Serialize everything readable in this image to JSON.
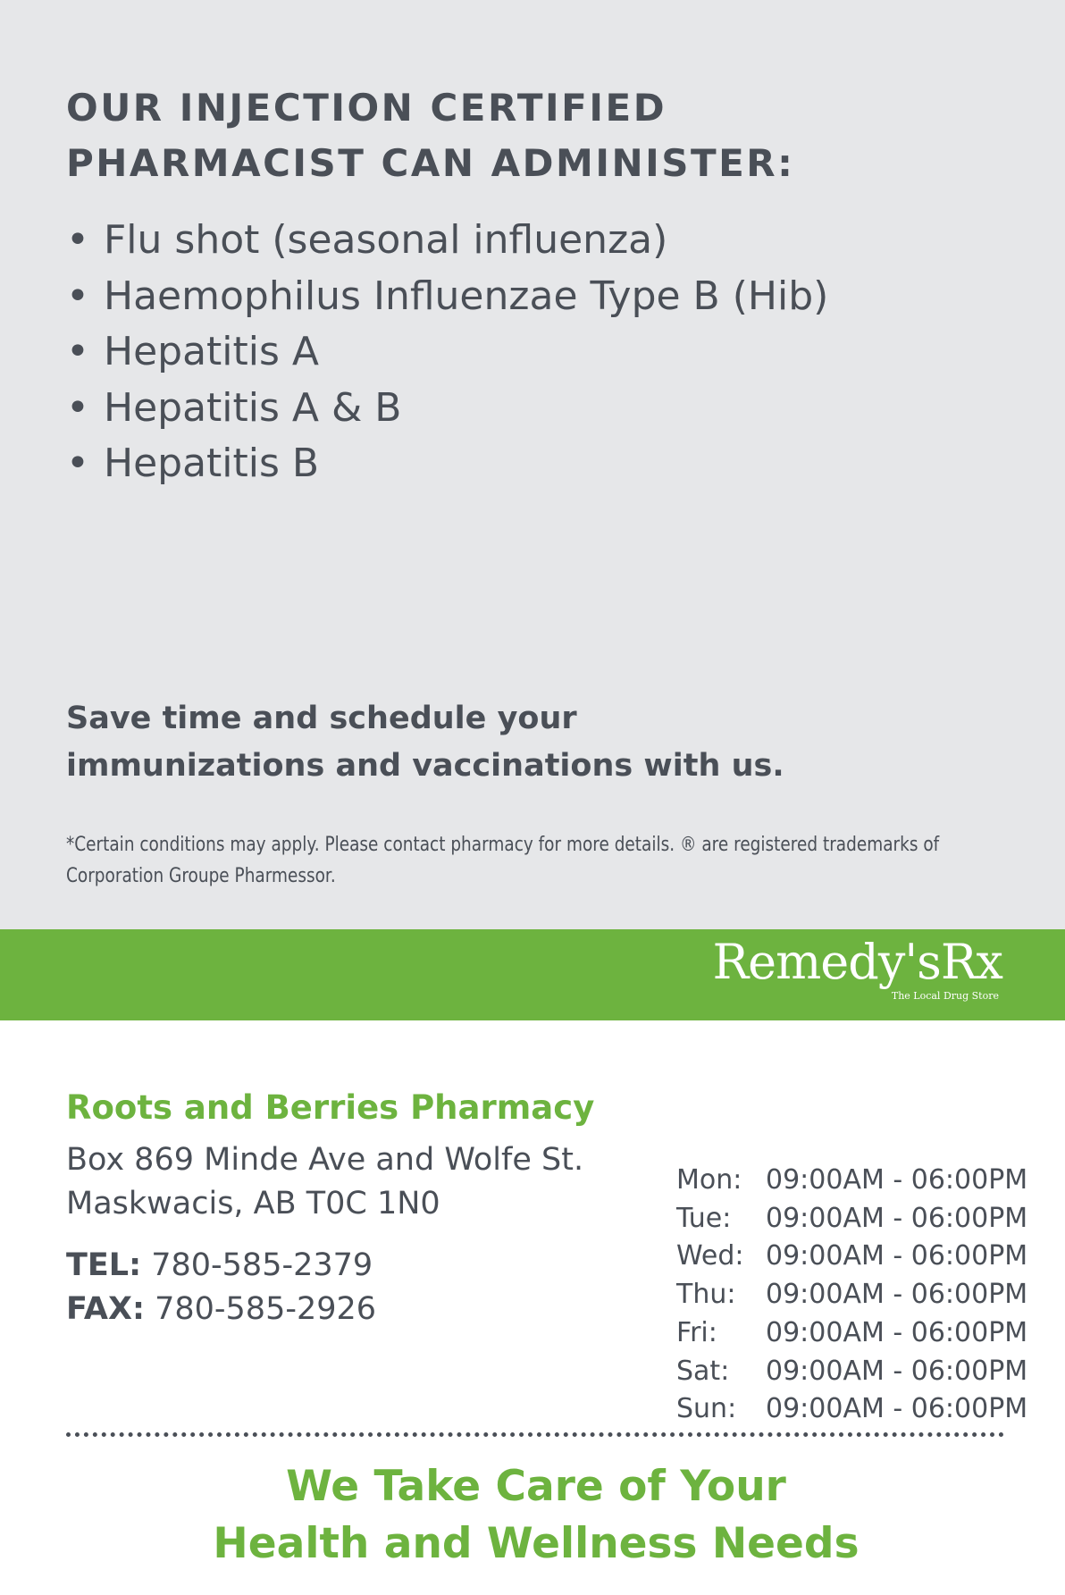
{
  "heading": {
    "line1": "OUR INJECTION CERTIFIED",
    "line2": "PHARMACIST CAN ADMINISTER:"
  },
  "vaccines": [
    "Flu shot (seasonal influenza)",
    "Haemophilus Influenzae Type B (Hib)",
    "Hepatitis A",
    "Hepatitis A & B",
    "Hepatitis B"
  ],
  "cta": {
    "line1": "Save time and schedule your",
    "line2": "immunizations and vaccinations with us."
  },
  "disclaimer": {
    "line1": "*Certain conditions may apply. Please contact pharmacy for more details. ® are registered trademarks of",
    "line2": "Corporation Groupe Pharmessor."
  },
  "logo": {
    "name": "Remedy'sRx",
    "tagline": "The Local Drug Store"
  },
  "pharmacy": {
    "name": "Roots and Berries Pharmacy",
    "address1": "Box 869 Minde Ave and Wolfe St.",
    "address2": "Maskwacis, AB T0C 1N0",
    "tel_label": "TEL:",
    "tel": "780-585-2379",
    "fax_label": "FAX:",
    "fax": "780-585-2926"
  },
  "hours": [
    {
      "day": "Mon:",
      "time": "09:00AM - 06:00PM"
    },
    {
      "day": "Tue:",
      "time": "09:00AM - 06:00PM"
    },
    {
      "day": "Wed:",
      "time": "09:00AM - 06:00PM"
    },
    {
      "day": "Thu:",
      "time": "09:00AM - 06:00PM"
    },
    {
      "day": "Fri:",
      "time": "09:00AM - 06:00PM"
    },
    {
      "day": "Sat:",
      "time": "09:00AM - 06:00PM"
    },
    {
      "day": "Sun:",
      "time": "09:00AM - 06:00PM"
    }
  ],
  "slogan": {
    "line1": "We Take Care of Your",
    "line2": "Health and Wellness Needs"
  },
  "colors": {
    "brand_green": "#6db33f",
    "text": "#4a4f57",
    "panel": "#e6e7e9"
  }
}
